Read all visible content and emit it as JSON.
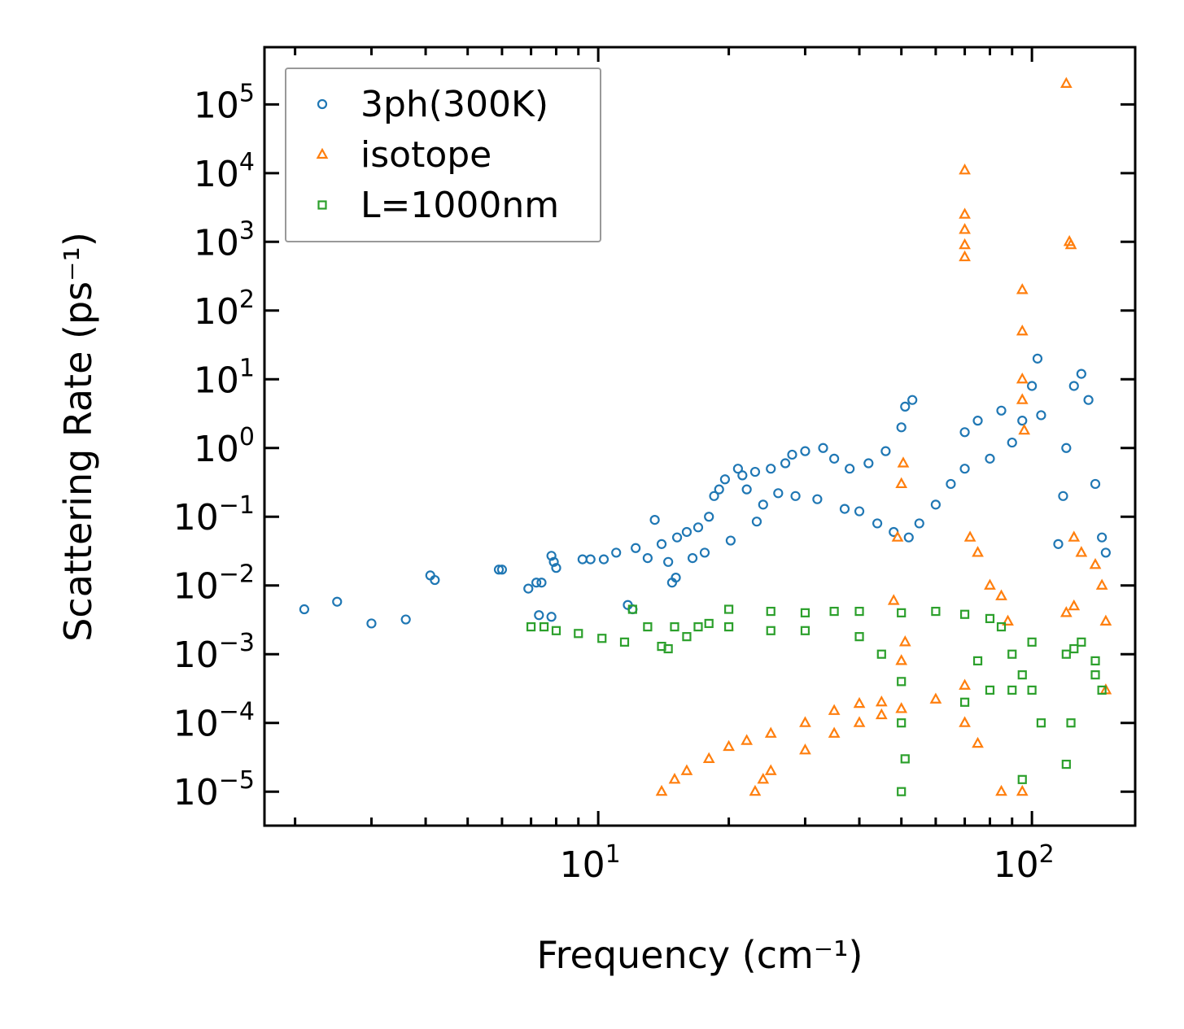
{
  "chart_data": {
    "type": "scatter",
    "title": "",
    "xlabel": "Frequency (cm⁻¹)",
    "ylabel": "Scattering Rate (ps⁻¹)",
    "xscale": "log",
    "yscale": "log",
    "xlim": [
      1.7,
      173
    ],
    "ylim": [
      3.2e-06,
      680000
    ],
    "x_ticks": [
      {
        "value": 10,
        "base": "10",
        "exp": "1"
      },
      {
        "value": 100,
        "base": "10",
        "exp": "2"
      }
    ],
    "y_ticks": [
      {
        "value": 100000.0,
        "base": "10",
        "exp": "5"
      },
      {
        "value": 10000.0,
        "base": "10",
        "exp": "4"
      },
      {
        "value": 1000.0,
        "base": "10",
        "exp": "3"
      },
      {
        "value": 100.0,
        "base": "10",
        "exp": "2"
      },
      {
        "value": 10.0,
        "base": "10",
        "exp": "1"
      },
      {
        "value": 1.0,
        "base": "10",
        "exp": "0"
      },
      {
        "value": 0.1,
        "base": "10",
        "exp": "−1"
      },
      {
        "value": 0.01,
        "base": "10",
        "exp": "−2"
      },
      {
        "value": 0.001,
        "base": "10",
        "exp": "−3"
      },
      {
        "value": 0.0001,
        "base": "10",
        "exp": "−4"
      },
      {
        "value": 1e-05,
        "base": "10",
        "exp": "−5"
      }
    ],
    "legend_position": "top-left",
    "grid": false,
    "series": [
      {
        "name": "3ph(300K)",
        "marker": "circle",
        "color": "#1f77b4",
        "points": [
          [
            2.1,
            0.0045
          ],
          [
            2.5,
            0.0058
          ],
          [
            3.0,
            0.0028
          ],
          [
            3.6,
            0.0032
          ],
          [
            4.1,
            0.014
          ],
          [
            4.2,
            0.012
          ],
          [
            5.9,
            0.017
          ],
          [
            6.0,
            0.017
          ],
          [
            6.9,
            0.009
          ],
          [
            7.2,
            0.011
          ],
          [
            7.4,
            0.011
          ],
          [
            7.8,
            0.027
          ],
          [
            7.9,
            0.022
          ],
          [
            8.0,
            0.018
          ],
          [
            7.3,
            0.0037
          ],
          [
            7.8,
            0.0035
          ],
          [
            9.2,
            0.024
          ],
          [
            9.6,
            0.024
          ],
          [
            10.3,
            0.024
          ],
          [
            11,
            0.03
          ],
          [
            11.7,
            0.0052
          ],
          [
            12,
            0.0045
          ],
          [
            12.2,
            0.035
          ],
          [
            13,
            0.025
          ],
          [
            13.5,
            0.09
          ],
          [
            14,
            0.04
          ],
          [
            14.5,
            0.022
          ],
          [
            14.8,
            0.011
          ],
          [
            15.1,
            0.013
          ],
          [
            15.2,
            0.05
          ],
          [
            16,
            0.06
          ],
          [
            16.5,
            0.025
          ],
          [
            17,
            0.07
          ],
          [
            17.6,
            0.03
          ],
          [
            18,
            0.1
          ],
          [
            18.5,
            0.2
          ],
          [
            19,
            0.25
          ],
          [
            19.6,
            0.35
          ],
          [
            20.2,
            0.045
          ],
          [
            21,
            0.5
          ],
          [
            21.5,
            0.4
          ],
          [
            22,
            0.25
          ],
          [
            23,
            0.45
          ],
          [
            23.2,
            0.085
          ],
          [
            24,
            0.15
          ],
          [
            25,
            0.5
          ],
          [
            26,
            0.22
          ],
          [
            27,
            0.6
          ],
          [
            28,
            0.8
          ],
          [
            28.5,
            0.2
          ],
          [
            30,
            0.9
          ],
          [
            32,
            0.18
          ],
          [
            33,
            1.0
          ],
          [
            35,
            0.7
          ],
          [
            37,
            0.13
          ],
          [
            38,
            0.5
          ],
          [
            40,
            0.12
          ],
          [
            42,
            0.6
          ],
          [
            44,
            0.08
          ],
          [
            46,
            0.9
          ],
          [
            48,
            0.06
          ],
          [
            50,
            2
          ],
          [
            51,
            4
          ],
          [
            52,
            0.05
          ],
          [
            53,
            5
          ],
          [
            55,
            0.08
          ],
          [
            60,
            0.15
          ],
          [
            65,
            0.3
          ],
          [
            70,
            0.5
          ],
          [
            70,
            1.7
          ],
          [
            75,
            2.5
          ],
          [
            80,
            0.7
          ],
          [
            85,
            3.5
          ],
          [
            90,
            1.2
          ],
          [
            95,
            2.5
          ],
          [
            100,
            8
          ],
          [
            103,
            20
          ],
          [
            105,
            3
          ],
          [
            115,
            0.04
          ],
          [
            118,
            0.2
          ],
          [
            120,
            1
          ],
          [
            125,
            8
          ],
          [
            130,
            12
          ],
          [
            135,
            5
          ],
          [
            140,
            0.3
          ],
          [
            145,
            0.05
          ],
          [
            148,
            0.03
          ]
        ]
      },
      {
        "name": "isotope",
        "marker": "triangle",
        "color": "#ff7f0e",
        "points": [
          [
            14,
            1e-05
          ],
          [
            15,
            1.5e-05
          ],
          [
            16,
            2e-05
          ],
          [
            18,
            3e-05
          ],
          [
            20,
            4.5e-05
          ],
          [
            22,
            5.5e-05
          ],
          [
            25,
            7e-05
          ],
          [
            30,
            0.0001
          ],
          [
            35,
            0.00015
          ],
          [
            40,
            0.00019
          ],
          [
            45,
            0.0002
          ],
          [
            23,
            1e-05
          ],
          [
            24,
            1.5e-05
          ],
          [
            25,
            2e-05
          ],
          [
            30,
            4e-05
          ],
          [
            35,
            7e-05
          ],
          [
            40,
            0.0001
          ],
          [
            45,
            0.00013
          ],
          [
            50,
            0.00016
          ],
          [
            60,
            0.00022
          ],
          [
            70,
            0.00035
          ],
          [
            48,
            0.006
          ],
          [
            49,
            0.05
          ],
          [
            50,
            0.3
          ],
          [
            50.5,
            0.6
          ],
          [
            51,
            0.0015
          ],
          [
            50,
            0.0008
          ],
          [
            70,
            11000
          ],
          [
            70,
            2500
          ],
          [
            70,
            1500
          ],
          [
            70,
            900
          ],
          [
            70,
            600
          ],
          [
            72,
            0.05
          ],
          [
            75,
            0.03
          ],
          [
            80,
            0.01
          ],
          [
            85,
            0.007
          ],
          [
            70,
            0.0001
          ],
          [
            75,
            5e-05
          ],
          [
            85,
            1e-05
          ],
          [
            88,
            0.003
          ],
          [
            95,
            200
          ],
          [
            95,
            50
          ],
          [
            95,
            10
          ],
          [
            95,
            5
          ],
          [
            96,
            1.8
          ],
          [
            95,
            1e-05
          ],
          [
            120,
            200000
          ],
          [
            122,
            1000
          ],
          [
            123,
            900
          ],
          [
            125,
            0.05
          ],
          [
            130,
            0.03
          ],
          [
            140,
            0.02
          ],
          [
            145,
            0.01
          ],
          [
            120,
            0.004
          ],
          [
            125,
            0.005
          ],
          [
            148,
            0.003
          ],
          [
            148,
            0.0003
          ]
        ]
      },
      {
        "name": "L=1000nm",
        "marker": "square",
        "color": "#2ca02c",
        "points": [
          [
            7,
            0.0025
          ],
          [
            7.5,
            0.0025
          ],
          [
            8,
            0.0022
          ],
          [
            9,
            0.002
          ],
          [
            10.2,
            0.0017
          ],
          [
            11.5,
            0.0015
          ],
          [
            12,
            0.0045
          ],
          [
            13,
            0.0025
          ],
          [
            14,
            0.0013
          ],
          [
            14.5,
            0.0012
          ],
          [
            15,
            0.0025
          ],
          [
            16,
            0.0018
          ],
          [
            17,
            0.0025
          ],
          [
            18,
            0.0028
          ],
          [
            20,
            0.0045
          ],
          [
            20,
            0.0025
          ],
          [
            25,
            0.0042
          ],
          [
            25,
            0.0022
          ],
          [
            30,
            0.004
          ],
          [
            30,
            0.0022
          ],
          [
            35,
            0.0042
          ],
          [
            40,
            0.0018
          ],
          [
            40,
            0.0042
          ],
          [
            45,
            0.001
          ],
          [
            50,
            0.0004
          ],
          [
            50,
            0.0001
          ],
          [
            50,
            1e-05
          ],
          [
            51,
            3e-05
          ],
          [
            50,
            0.004
          ],
          [
            60,
            0.0042
          ],
          [
            70,
            0.0038
          ],
          [
            70,
            0.0002
          ],
          [
            75,
            0.0008
          ],
          [
            80,
            0.0033
          ],
          [
            80,
            0.0003
          ],
          [
            85,
            0.0025
          ],
          [
            90,
            0.001
          ],
          [
            90,
            0.0003
          ],
          [
            95,
            0.0005
          ],
          [
            95,
            1.5e-05
          ],
          [
            100,
            0.0003
          ],
          [
            105,
            0.0001
          ],
          [
            100,
            0.0015
          ],
          [
            120,
            2.5e-05
          ],
          [
            123,
            0.0001
          ],
          [
            120,
            0.001
          ],
          [
            125,
            0.0012
          ],
          [
            130,
            0.0015
          ],
          [
            140,
            0.0008
          ],
          [
            145,
            0.0003
          ],
          [
            140,
            0.0005
          ]
        ]
      }
    ]
  }
}
